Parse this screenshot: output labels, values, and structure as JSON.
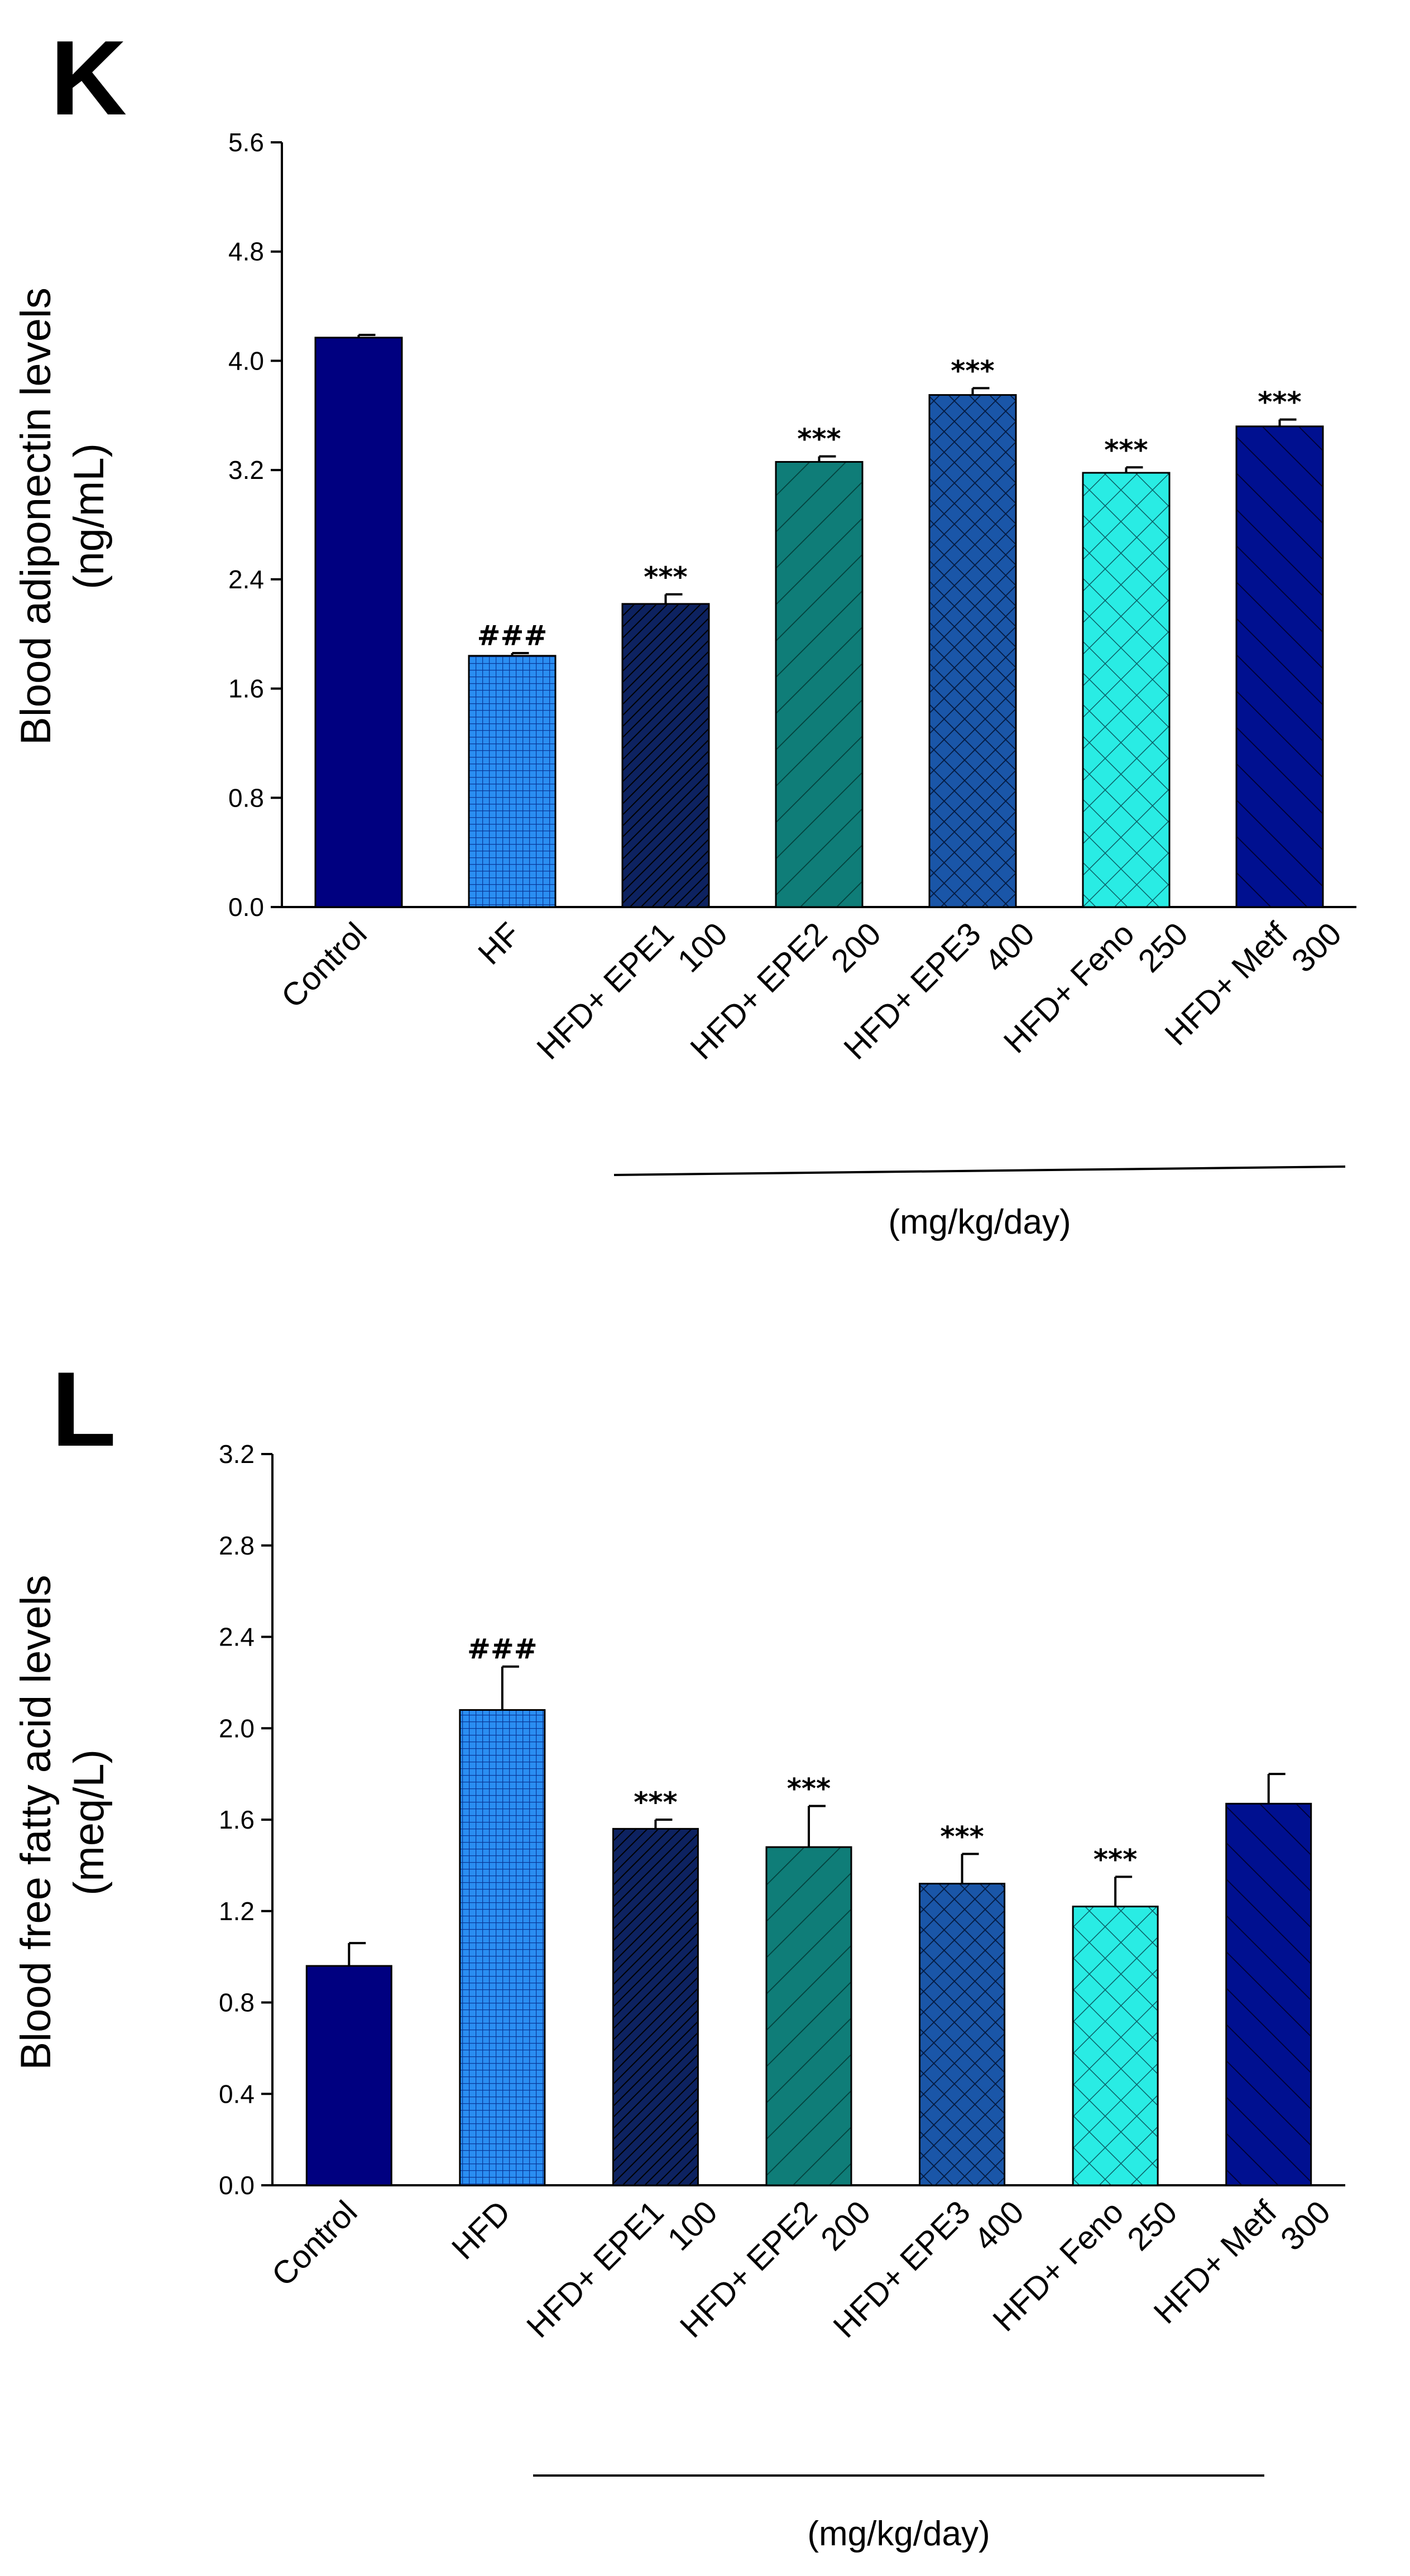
{
  "colors": {
    "axis": "#000000",
    "navy": "#000080",
    "blue": "#1e7fe8",
    "dark_navy": "#0a1e5a",
    "teal": "#0f7d78",
    "mid_blue": "#124a9a",
    "cyan": "#20e8e0",
    "navy2": "#001090"
  },
  "chart_data": [
    {
      "panel": "K",
      "type": "bar",
      "title": "",
      "xlabel": "(mg/kg/day)",
      "ylabel_lines": [
        "Blood adiponectin levels",
        "(ng/mL)"
      ],
      "ylim": [
        0,
        5.6
      ],
      "yticks": [
        "0.0",
        "0.8",
        "1.6",
        "2.4",
        "3.2",
        "4.0",
        "4.8",
        "5.6"
      ],
      "categories": [
        [
          "Control"
        ],
        [
          "HF"
        ],
        [
          "HFD+ EPE1",
          "100"
        ],
        [
          "HFD+ EPE2",
          "200"
        ],
        [
          "HFD+ EPE3",
          "400"
        ],
        [
          "HFD+ Feno",
          "250"
        ],
        [
          "HFD+ Metf",
          "300"
        ]
      ],
      "values": [
        4.17,
        1.84,
        2.22,
        3.26,
        3.75,
        3.18,
        3.52
      ],
      "errors": [
        0.02,
        0.02,
        0.07,
        0.04,
        0.05,
        0.04,
        0.05
      ],
      "annotations": [
        "",
        "###",
        "***",
        "***",
        "***",
        "***",
        "***"
      ],
      "patterns": [
        "solid",
        "grid",
        "diag-dense",
        "diag-right",
        "crosshatch-dense",
        "crosshatch",
        "diag-left"
      ],
      "fills": [
        "navy",
        "blue",
        "dark_navy",
        "teal",
        "mid_blue",
        "cyan",
        "navy2"
      ],
      "grid": false,
      "legend": "none"
    },
    {
      "panel": "L",
      "type": "bar",
      "title": "",
      "xlabel": "(mg/kg/day)",
      "ylabel_lines": [
        "Blood free fatty acid levels",
        "(meq/L)"
      ],
      "ylim": [
        0,
        3.2
      ],
      "yticks": [
        "0.0",
        "0.4",
        "0.8",
        "1.2",
        "1.6",
        "2.0",
        "2.4",
        "2.8",
        "3.2"
      ],
      "categories": [
        [
          "Control"
        ],
        [
          "HFD"
        ],
        [
          "HFD+ EPE1",
          "100"
        ],
        [
          "HFD+ EPE2",
          "200"
        ],
        [
          "HFD+ EPE3",
          "400"
        ],
        [
          "HFD+ Feno",
          "250"
        ],
        [
          "HFD+ Metf",
          "300"
        ]
      ],
      "values": [
        0.96,
        2.08,
        1.56,
        1.48,
        1.32,
        1.22,
        1.67
      ],
      "errors": [
        0.1,
        0.19,
        0.04,
        0.18,
        0.13,
        0.13,
        0.13
      ],
      "annotations": [
        "",
        "###",
        "***",
        "***",
        "***",
        "***",
        ""
      ],
      "patterns": [
        "solid",
        "grid",
        "diag-dense",
        "diag-right",
        "crosshatch-dense",
        "crosshatch",
        "diag-left"
      ],
      "fills": [
        "navy",
        "blue",
        "dark_navy",
        "teal",
        "mid_blue",
        "cyan",
        "navy2"
      ],
      "grid": false,
      "legend": "none"
    }
  ]
}
